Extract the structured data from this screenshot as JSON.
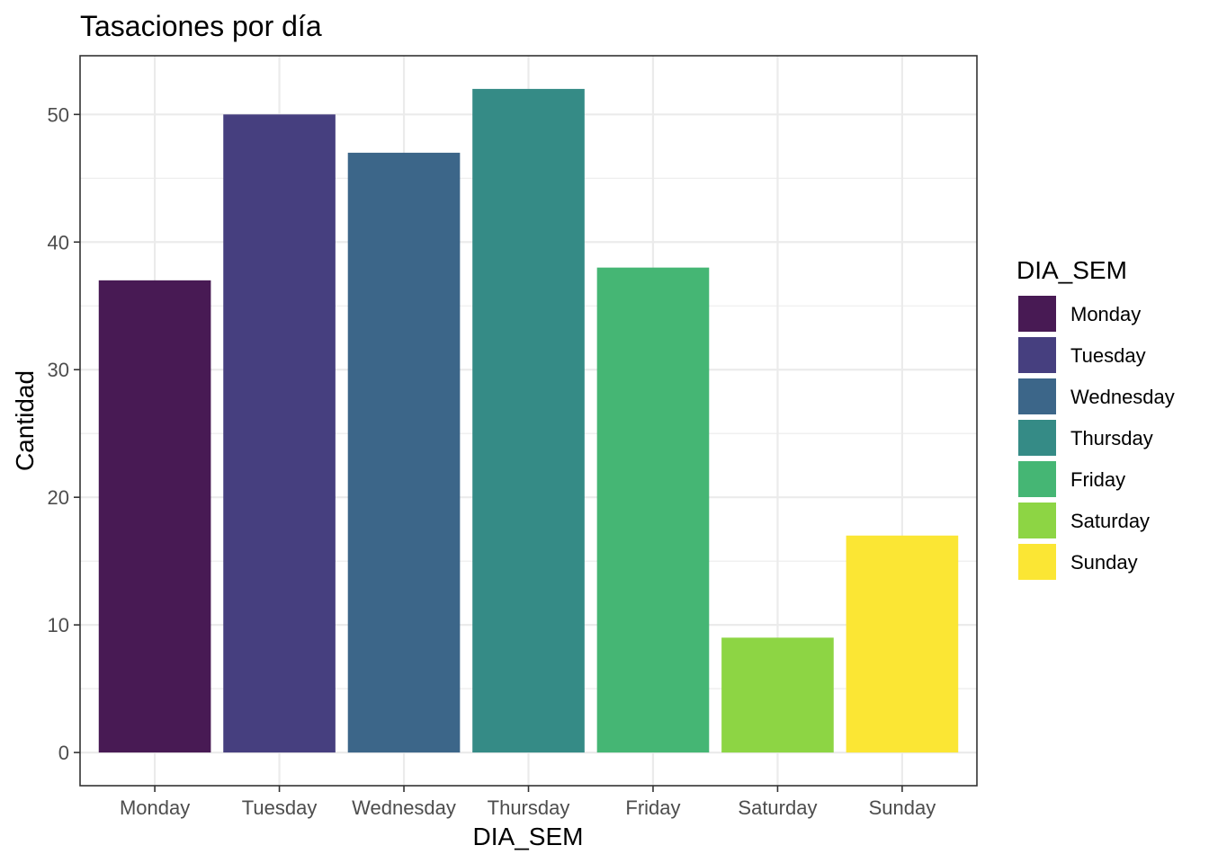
{
  "chart_data": {
    "type": "bar",
    "title": "Tasaciones por día",
    "xlabel": "DIA_SEM",
    "ylabel": "Cantidad",
    "categories": [
      "Monday",
      "Tuesday",
      "Wednesday",
      "Thursday",
      "Friday",
      "Saturday",
      "Sunday"
    ],
    "values": [
      37,
      50,
      47,
      52,
      38,
      9,
      17
    ],
    "colors": [
      "#481a54",
      "#463f7f",
      "#3c6689",
      "#358b86",
      "#45b674",
      "#8dd544",
      "#fbe634"
    ],
    "ylim": [
      0,
      54.6
    ],
    "yticks": [
      0,
      10,
      20,
      30,
      40,
      50
    ],
    "grid": true,
    "legend": {
      "title": "DIA_SEM",
      "position": "right"
    }
  }
}
